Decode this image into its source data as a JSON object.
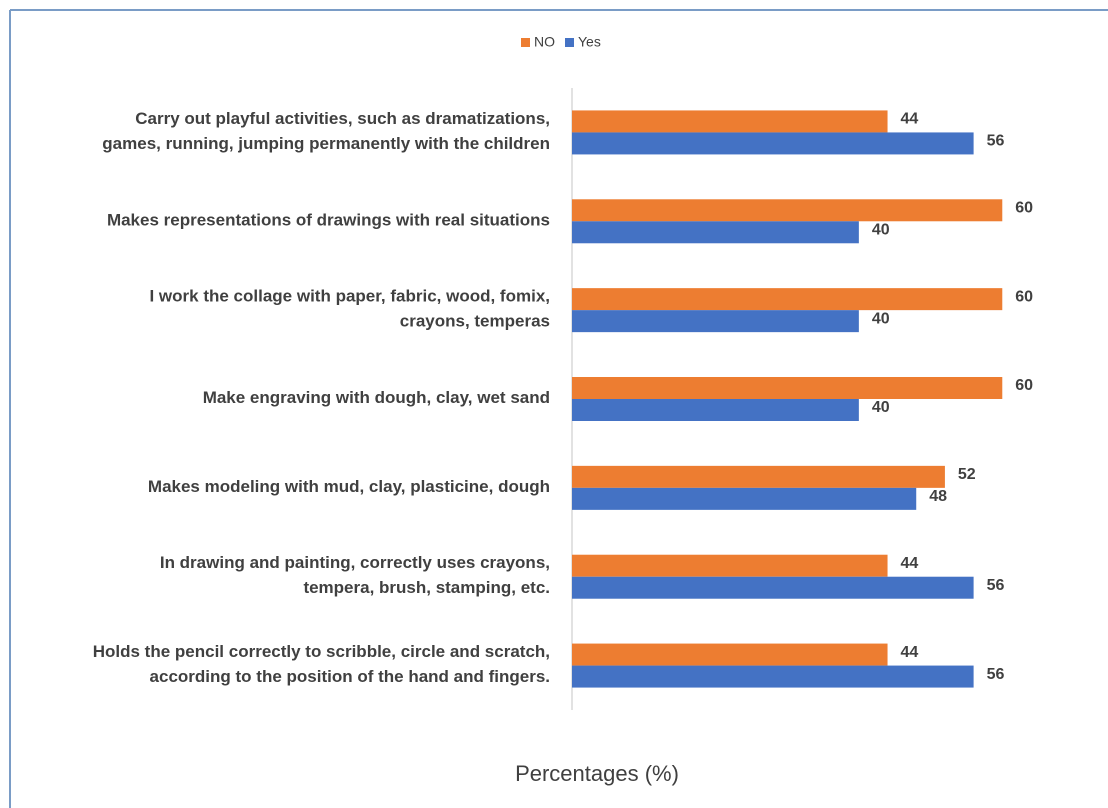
{
  "chart_data": {
    "type": "hbar",
    "categories": [
      "Carry out playful activities, such as dramatizations,\ngames, running, jumping permanently with the children",
      "Makes representations of drawings with real situations",
      "I work the collage with paper, fabric, wood, fomix,\ncrayons, temperas",
      "Make engraving with dough, clay, wet sand",
      "Makes modeling with mud, clay, plasticine, dough",
      "In drawing and painting, correctly uses crayons,\ntempera, brush, stamping, etc.",
      "Holds the pencil correctly to scribble, circle and scratch,\naccording to the position of the hand and fingers."
    ],
    "series": [
      {
        "name": "NO",
        "color": "#ed7d31",
        "values": [
          44,
          60,
          60,
          60,
          52,
          44,
          44
        ]
      },
      {
        "name": "Yes",
        "color": "#4472c4",
        "values": [
          56,
          40,
          40,
          40,
          48,
          56,
          56
        ]
      }
    ],
    "xlabel": "Percentages (%)",
    "xlim": [
      0,
      70
    ],
    "legend": "top"
  }
}
